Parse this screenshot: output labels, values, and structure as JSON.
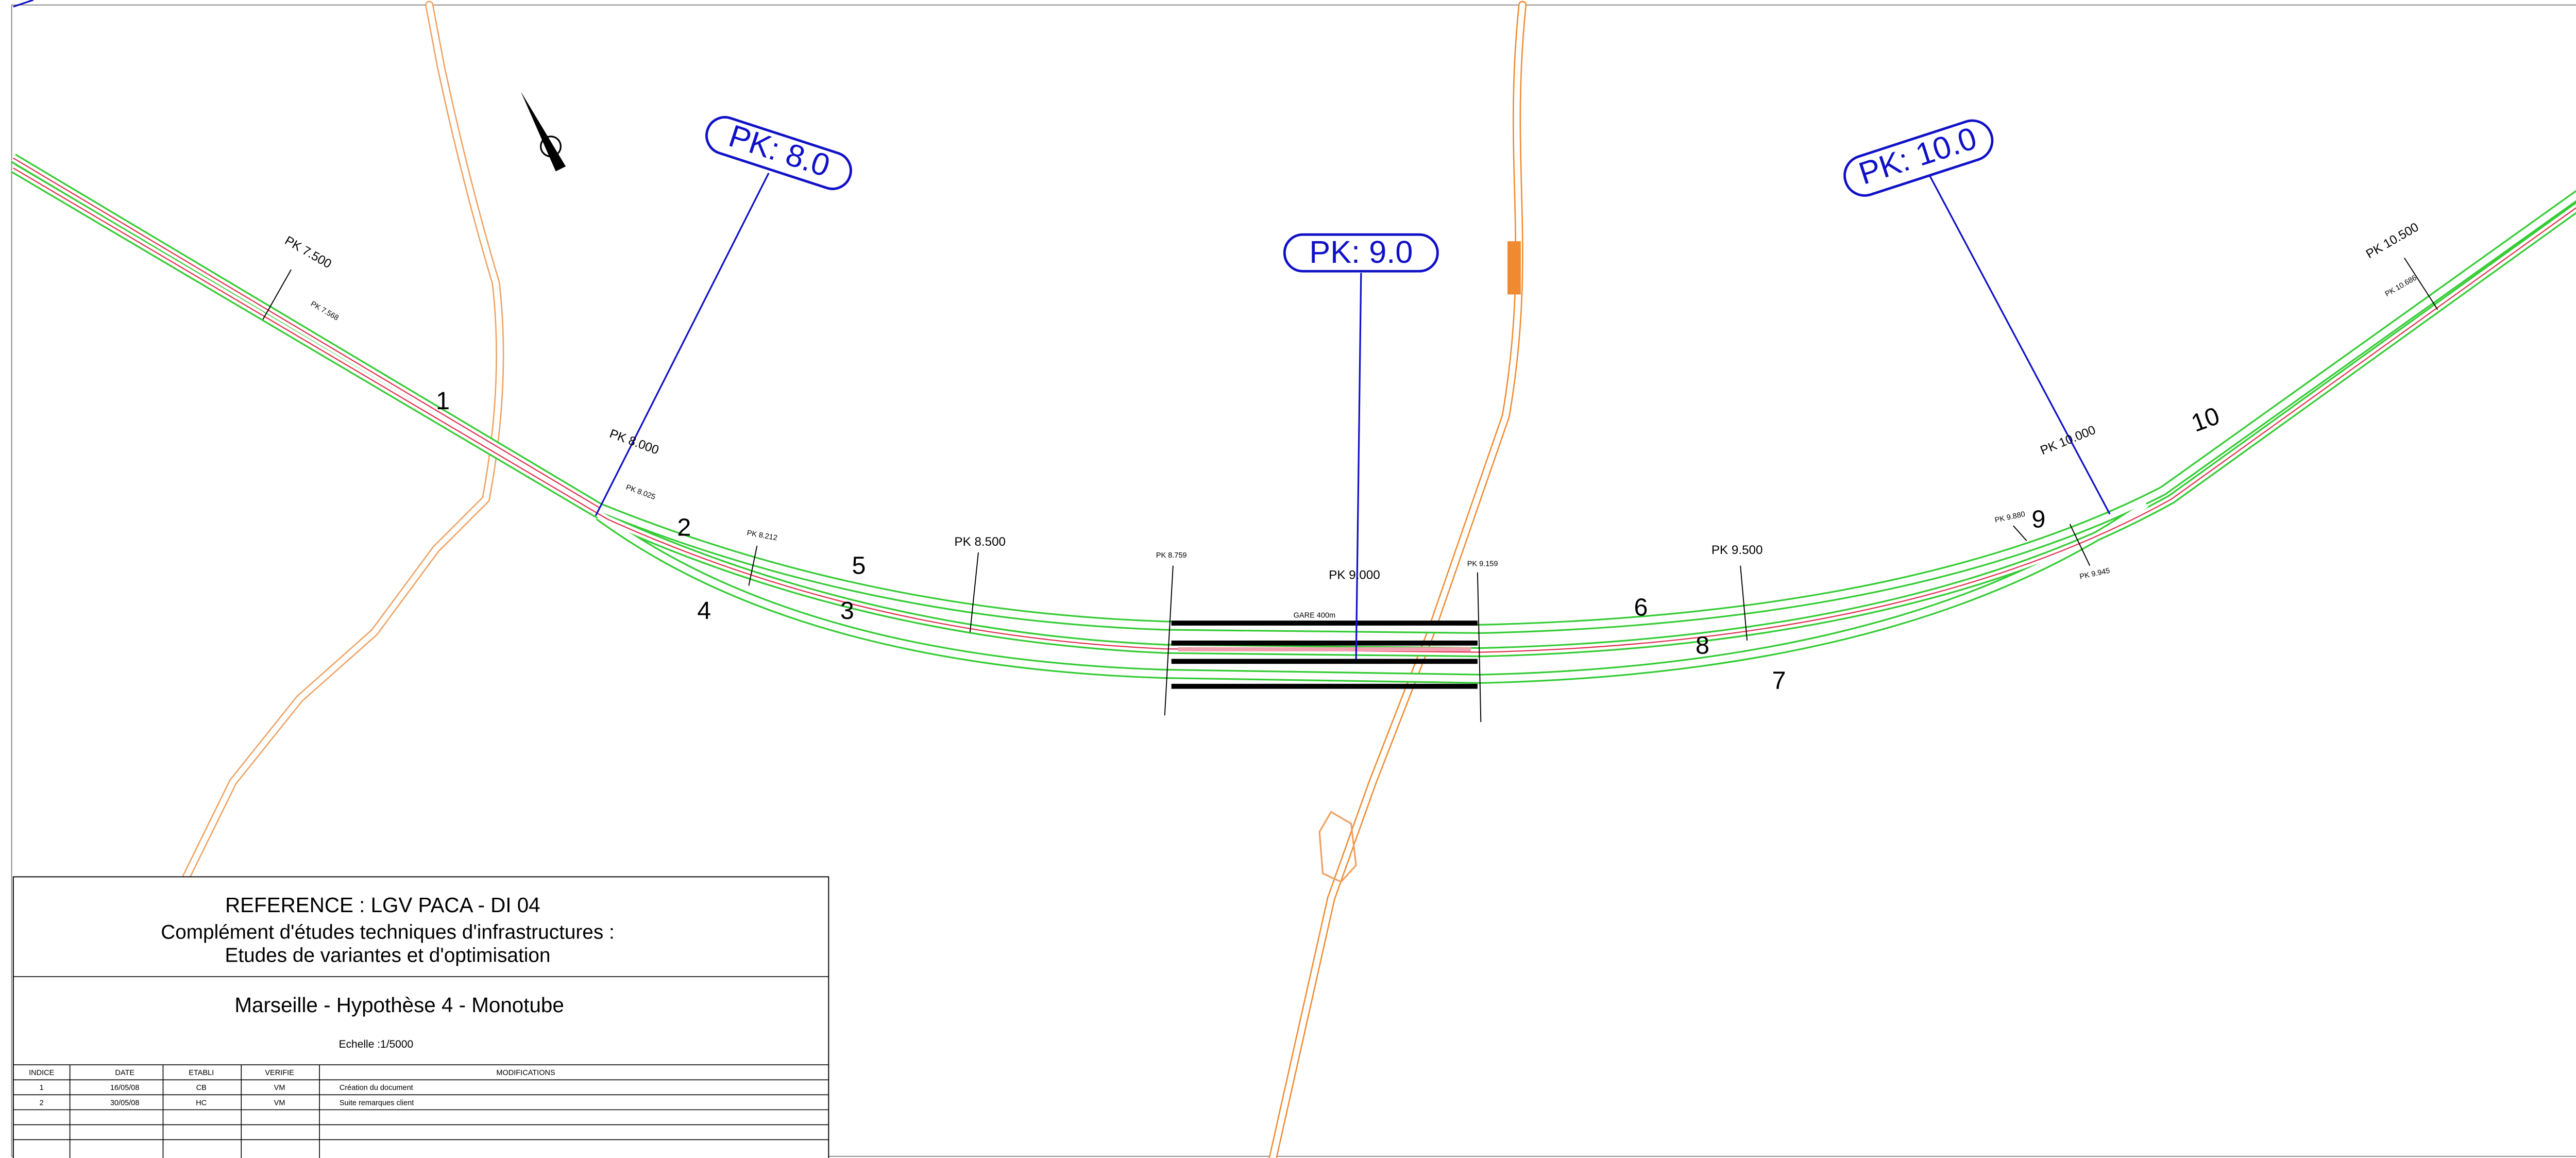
{
  "pk_markers": [
    "PK:  8.0",
    "PK:  9.0",
    "PK:  10.0"
  ],
  "pk_labels": [
    "PK 7.500",
    "PK 7.568",
    "PK 8.000",
    "PK 8.025",
    "PK 8.212",
    "PK 8.500",
    "PK 8.759",
    "PK 9.000",
    "PK 9.159",
    "PK 9.500",
    "PK 9.880",
    "PK 9.945",
    "PK 10.000",
    "PK 10.500",
    "PK 10.686"
  ],
  "station_label": "GARE  400m",
  "track_numbers": [
    "1",
    "2",
    "3",
    "4",
    "5",
    "6",
    "7",
    "8",
    "9",
    "10"
  ],
  "title_block": {
    "reference": "REFERENCE : LGV PACA - DI 04",
    "subtitle_1": "Complément d'études techniques d'infrastructures :",
    "subtitle_2": "Etudes de variantes et d'optimisation",
    "project": "Marseille - Hypothèse 4 - Monotube",
    "scale": "Echelle :1/5000",
    "table": {
      "headers": [
        "INDICE",
        "DATE",
        "ETABLI",
        "VERIFIE",
        "MODIFICATIONS"
      ],
      "rows": [
        [
          "1",
          "16/05/08",
          "CB",
          "VM",
          "Création du document"
        ],
        [
          "2",
          "30/05/08",
          "HC",
          "VM",
          "Suite remarques client"
        ]
      ]
    }
  }
}
